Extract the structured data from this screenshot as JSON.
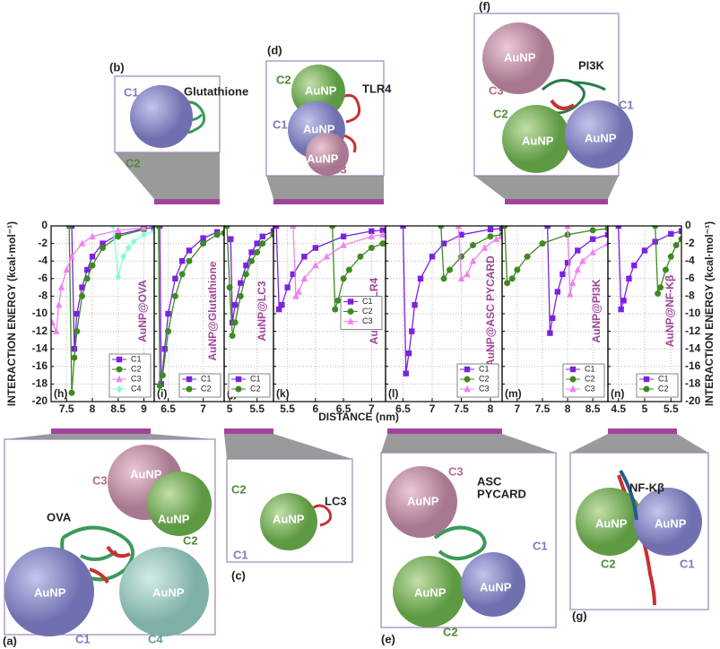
{
  "axes": {
    "x_label": "DISTANCE (nm)",
    "y_label": "INTERACTION ENERGY (kcal·mol⁻¹)"
  },
  "insets": [
    {
      "label": "(a)",
      "protein": [
        "OVA"
      ],
      "names": [
        "C1",
        "C2",
        "C3",
        "C4"
      ],
      "sphere": "AuNP"
    },
    {
      "label": "(b)",
      "protein": [
        "Glutathione"
      ],
      "names": [
        "C1",
        "C2"
      ],
      "sphere": "AuNP"
    },
    {
      "label": "(c)",
      "protein": [
        "LC3"
      ],
      "names": [
        "C1",
        "C2"
      ],
      "sphere": "AuNP"
    },
    {
      "label": "(d)",
      "protein": [
        "TLR4"
      ],
      "names": [
        "C1",
        "C2",
        "C3"
      ],
      "sphere": "AuNP"
    },
    {
      "label": "(e)",
      "protein": [
        "ASC",
        "PYCARD"
      ],
      "names": [
        "C1",
        "C2",
        "C3"
      ],
      "sphere": "AuNP"
    },
    {
      "label": "(f)",
      "protein": [
        "PI3K"
      ],
      "names": [
        "C1",
        "C2",
        "C3"
      ],
      "sphere": "AuNP"
    },
    {
      "label": "(g)",
      "protein": [
        "NF-Kβ"
      ],
      "names": [
        "C1",
        "C2"
      ],
      "sphere": "AuNP"
    }
  ],
  "chart_data": [
    {
      "type": "line",
      "panel": "(h)",
      "title": "AuNP@OVA",
      "xlim": [
        7.2,
        9.2
      ],
      "xticks": [
        7.5,
        8.0,
        8.5,
        9.0
      ],
      "ylim": [
        -20,
        0
      ],
      "yticks": [
        -20,
        -18,
        -16,
        -14,
        -12,
        -10,
        -8,
        -6,
        -4,
        -2,
        0
      ],
      "grid": true,
      "legend": "lower right",
      "series": [
        {
          "name": "C1",
          "color": "#7a22e0",
          "marker": "square",
          "x": [
            7.6,
            7.65,
            7.7,
            7.8,
            7.9,
            8.0,
            8.2,
            8.5,
            9.0,
            9.2
          ],
          "values": [
            0,
            -14,
            -10,
            -7,
            -5,
            -3.5,
            -2,
            -1,
            -0.3,
            -0.2
          ]
        },
        {
          "name": "C2",
          "color": "#3d8a22",
          "marker": "circle",
          "x": [
            7.55,
            7.6,
            7.65,
            7.7,
            7.8,
            7.9,
            8.0,
            8.2,
            8.5,
            9.0
          ],
          "values": [
            0,
            -19,
            -15,
            -12,
            -8,
            -6,
            -4.5,
            -2.5,
            -1.2,
            -0.4
          ]
        },
        {
          "name": "C3",
          "color": "#ee82ee",
          "marker": "triangle",
          "x": [
            7.22,
            7.3,
            7.35,
            7.4,
            7.5,
            7.6,
            7.8,
            8.0,
            8.5,
            9.0
          ],
          "values": [
            -11,
            -12,
            -9,
            -7,
            -5,
            -3.5,
            -2,
            -1.2,
            -0.5,
            -0.2
          ]
        },
        {
          "name": "C4",
          "color": "#7fffd4",
          "marker": "diamond",
          "x": [
            8.4,
            8.5,
            8.6,
            8.7,
            8.8,
            9.0,
            9.2
          ],
          "values": [
            0,
            -5.8,
            -3.5,
            -2.5,
            -1.8,
            -1,
            -0.6
          ]
        }
      ]
    },
    {
      "type": "line",
      "panel": "(i)",
      "title": "AuNP@Glutathione",
      "xlim": [
        6.3,
        7.3
      ],
      "xticks": [
        6.5,
        7.0
      ],
      "ylim": [
        -20,
        0
      ],
      "yticks": [
        -20,
        -18,
        -16,
        -14,
        -12,
        -10,
        -8,
        -6,
        -4,
        -2,
        0
      ],
      "grid": true,
      "legend": "lower right",
      "series": [
        {
          "name": "C1",
          "color": "#7a22e0",
          "marker": "square",
          "x": [
            6.38,
            6.4,
            6.45,
            6.5,
            6.6,
            6.7,
            6.8,
            7.0,
            7.2
          ],
          "values": [
            0,
            -18,
            -14,
            -10,
            -6,
            -4,
            -2.8,
            -1.4,
            -0.7
          ]
        },
        {
          "name": "C2",
          "color": "#3d8a22",
          "marker": "circle",
          "x": [
            6.36,
            6.38,
            6.42,
            6.5,
            6.6,
            6.7,
            6.8,
            7.0,
            7.2,
            7.3
          ],
          "values": [
            0,
            -18.2,
            -17,
            -12,
            -8,
            -5.5,
            -4,
            -2,
            -1,
            -0.8
          ]
        }
      ]
    },
    {
      "type": "line",
      "panel": "(j)",
      "title": "AuNP@LC3",
      "xlim": [
        4.9,
        5.8
      ],
      "xticks": [
        5.0,
        5.5
      ],
      "ylim": [
        -20,
        0
      ],
      "yticks": [
        -20,
        -18,
        -16,
        -14,
        -12,
        -10,
        -8,
        -6,
        -4,
        -2,
        0
      ],
      "grid": true,
      "legend": "lower right",
      "series": [
        {
          "name": "C1",
          "color": "#7a22e0",
          "marker": "square",
          "x": [
            5.02,
            5.05,
            5.1,
            5.2,
            5.3,
            5.4,
            5.5,
            5.6,
            5.8
          ],
          "values": [
            -1.5,
            -11,
            -9,
            -6.5,
            -4.5,
            -3,
            -2,
            -1.2,
            -0.6
          ]
        },
        {
          "name": "C2",
          "color": "#3d8a22",
          "marker": "circle",
          "x": [
            4.95,
            5.0,
            5.05,
            5.1,
            5.2,
            5.3,
            5.4,
            5.5,
            5.6,
            5.8
          ],
          "values": [
            0,
            -7,
            -12.5,
            -11,
            -8,
            -5.5,
            -4,
            -3,
            -2,
            -1
          ]
        }
      ]
    },
    {
      "type": "line",
      "panel": "(k)",
      "title": "AuNP@TLR4",
      "xlim": [
        5.25,
        7.25
      ],
      "xticks": [
        5.5,
        6.0,
        6.5,
        7.0
      ],
      "ylim": [
        -20,
        0
      ],
      "yticks": [
        -20,
        -18,
        -16,
        -14,
        -12,
        -10,
        -8,
        -6,
        -4,
        -2,
        0
      ],
      "grid": true,
      "legend": "center right",
      "series": [
        {
          "name": "C1",
          "color": "#7a22e0",
          "marker": "square",
          "x": [
            5.3,
            5.35,
            5.4,
            5.5,
            5.6,
            5.8,
            6.0,
            6.5,
            7.0,
            7.2
          ],
          "values": [
            0,
            -9.5,
            -9,
            -7,
            -5.5,
            -3.5,
            -2.5,
            -1.2,
            -0.6,
            -0.5
          ]
        },
        {
          "name": "C2",
          "color": "#3d8a22",
          "marker": "circle",
          "x": [
            6.3,
            6.35,
            6.4,
            6.5,
            6.6,
            6.8,
            7.0,
            7.2
          ],
          "values": [
            0,
            -9.5,
            -8.5,
            -6,
            -5,
            -3.5,
            -2.5,
            -2
          ]
        },
        {
          "name": "C3",
          "color": "#ee82ee",
          "marker": "triangle",
          "x": [
            5.6,
            5.65,
            5.7,
            5.8,
            6.0,
            6.2,
            6.5,
            7.0,
            7.2
          ],
          "values": [
            0,
            -8,
            -7.5,
            -6,
            -4.5,
            -3.5,
            -2.2,
            -1.2,
            -1
          ]
        }
      ]
    },
    {
      "type": "line",
      "panel": "(l)",
      "title": "AuNP@ASC PYCARD",
      "xlim": [
        6.2,
        8.2
      ],
      "xticks": [
        6.5,
        7.0,
        7.5,
        8.0
      ],
      "ylim": [
        -20,
        0
      ],
      "yticks": [
        -20,
        -18,
        -16,
        -14,
        -12,
        -10,
        -8,
        -6,
        -4,
        -2,
        0
      ],
      "grid": true,
      "legend": "lower right",
      "series": [
        {
          "name": "C1",
          "color": "#7a22e0",
          "marker": "square",
          "x": [
            6.5,
            6.55,
            6.6,
            6.65,
            6.7,
            6.8,
            7.0,
            7.2,
            7.5,
            8.0,
            8.2
          ],
          "values": [
            0,
            -16.8,
            -14.5,
            -12,
            -9,
            -6,
            -3.5,
            -2,
            -1,
            -0.4,
            -0.3
          ]
        },
        {
          "name": "C2",
          "color": "#3d8a22",
          "marker": "circle",
          "x": [
            7.15,
            7.2,
            7.3,
            7.5,
            7.7,
            8.0,
            8.2
          ],
          "values": [
            0,
            -6,
            -5,
            -3.5,
            -2.2,
            -1.2,
            -1
          ]
        },
        {
          "name": "C3",
          "color": "#ee82ee",
          "marker": "triangle",
          "x": [
            7.45,
            7.5,
            7.6,
            7.7,
            7.9,
            8.1,
            8.2
          ],
          "values": [
            0,
            -6,
            -5.5,
            -4,
            -2.5,
            -1.5,
            -1.2
          ]
        }
      ]
    },
    {
      "type": "line",
      "panel": "(m)",
      "title": "AuNP@PI3K",
      "xlim": [
        6.7,
        8.8
      ],
      "xticks": [
        7.0,
        7.5,
        8.0,
        8.5
      ],
      "ylim": [
        -20,
        0
      ],
      "yticks": [
        -20,
        -18,
        -16,
        -14,
        -12,
        -10,
        -8,
        -6,
        -4,
        -2,
        0
      ],
      "grid": true,
      "legend": "lower right",
      "series": [
        {
          "name": "C1",
          "color": "#7a22e0",
          "marker": "square",
          "x": [
            7.6,
            7.65,
            7.7,
            7.8,
            7.9,
            8.0,
            8.2,
            8.5,
            8.8
          ],
          "values": [
            0,
            -12.2,
            -10.5,
            -7.5,
            -5.5,
            -4.2,
            -2.8,
            -1.5,
            -1
          ]
        },
        {
          "name": "C2",
          "color": "#3d8a22",
          "marker": "circle",
          "x": [
            6.75,
            6.8,
            6.9,
            7.0,
            7.2,
            7.5,
            8.0,
            8.5,
            8.8
          ],
          "values": [
            0,
            -6.5,
            -6,
            -5,
            -3.5,
            -2,
            -1,
            -0.5,
            -0.3
          ]
        },
        {
          "name": "C3",
          "color": "#ee82ee",
          "marker": "triangle",
          "x": [
            8.0,
            8.05,
            8.1,
            8.2,
            8.3,
            8.5,
            8.8
          ],
          "values": [
            0,
            -7.8,
            -6.5,
            -5,
            -4,
            -3,
            -2
          ]
        }
      ]
    },
    {
      "type": "line",
      "panel": "(n)",
      "title": "AuNP@NF-Kβ",
      "xlim": [
        4.3,
        5.7
      ],
      "xticks": [
        4.5,
        5.0,
        5.5
      ],
      "ylim": [
        -20,
        0
      ],
      "yticks": [
        -20,
        -18,
        -16,
        -14,
        -12,
        -10,
        -8,
        -6,
        -4,
        -2,
        0
      ],
      "grid": true,
      "legend": "lower right",
      "series": [
        {
          "name": "C1",
          "color": "#7a22e0",
          "marker": "square",
          "x": [
            4.5,
            4.55,
            4.6,
            4.7,
            4.8,
            5.0,
            5.2,
            5.5,
            5.7
          ],
          "values": [
            0,
            -9.5,
            -8.5,
            -6,
            -4.5,
            -2.8,
            -1.8,
            -0.9,
            -0.6
          ]
        },
        {
          "name": "C2",
          "color": "#3d8a22",
          "marker": "circle",
          "x": [
            5.2,
            5.25,
            5.3,
            5.4,
            5.5,
            5.6,
            5.7
          ],
          "values": [
            0,
            -7.7,
            -7,
            -5,
            -3.5,
            -2.2,
            -1.5
          ]
        }
      ]
    }
  ]
}
